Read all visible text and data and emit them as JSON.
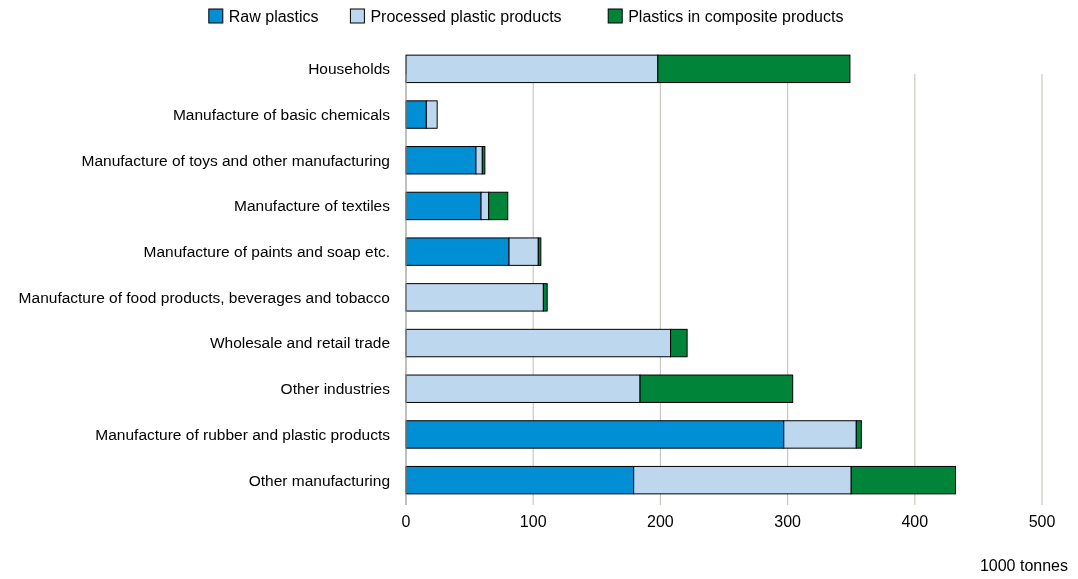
{
  "chart_data": {
    "type": "bar",
    "orientation": "horizontal",
    "stacked": true,
    "xlabel": "1000 tonnes",
    "categories": [
      "Households",
      "Manufacture of basic chemicals",
      "Manufacture of toys and other manufacturing",
      "Manufacture of textiles",
      "Manufacture of paints and soap etc.",
      "Manufacture of food products, beverages and tobacco",
      "Wholesale and retail trade",
      "Other industries",
      "Manufacture of rubber and plastic products",
      "Other manufacturing"
    ],
    "series": [
      {
        "name": "Raw plastics",
        "color": "#008fd5",
        "values": [
          0,
          16,
          55,
          59,
          81,
          0,
          0,
          0,
          297,
          179
        ]
      },
      {
        "name": "Processed plastic products",
        "color": "#bdd7ee",
        "values": [
          198,
          8.5,
          5,
          6,
          23,
          108,
          208,
          184,
          57,
          171
        ]
      },
      {
        "name": "Plastics in composite products",
        "color": "#00843a",
        "values": [
          151,
          0,
          2,
          15,
          2,
          3,
          13,
          120,
          4,
          82
        ]
      }
    ],
    "xlim": [
      0,
      500
    ],
    "xticks": [
      0,
      100,
      200,
      300,
      400,
      500
    ],
    "grid": "x",
    "legend": "top"
  }
}
